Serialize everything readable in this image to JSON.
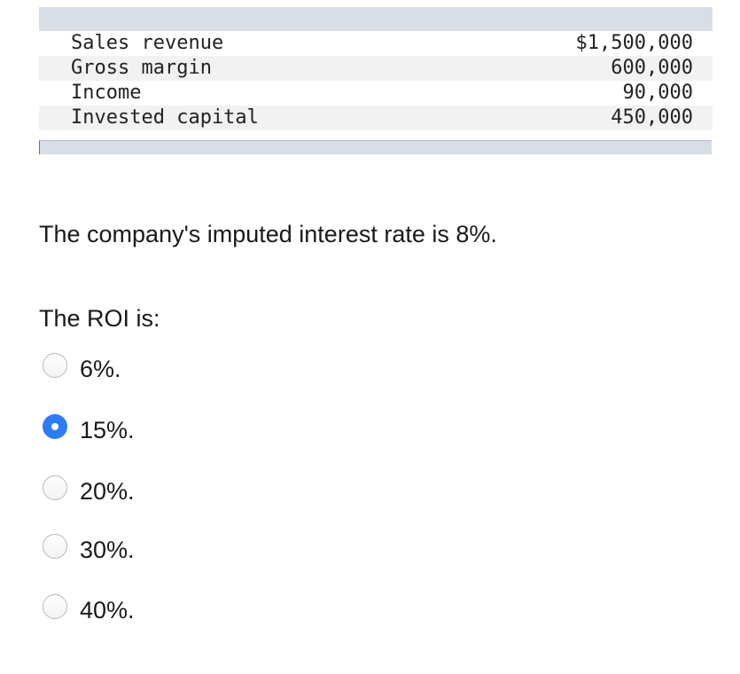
{
  "table": {
    "rows": [
      {
        "label": "Sales revenue",
        "value": "$1,500,000"
      },
      {
        "label": "Gross margin",
        "value": "600,000"
      },
      {
        "label": "Income",
        "value": "90,000"
      },
      {
        "label": "Invested capital",
        "value": "450,000"
      }
    ]
  },
  "statement": "The company's imputed interest rate is 8%.",
  "question": "The ROI is:",
  "options": [
    {
      "label": "6%.",
      "selected": false
    },
    {
      "label": "15%.",
      "selected": true
    },
    {
      "label": "20%.",
      "selected": false
    },
    {
      "label": "30%.",
      "selected": false
    },
    {
      "label": "40%.",
      "selected": false
    }
  ],
  "colors": {
    "table_bar": "#d8dde6",
    "row_shade": "#f2f2f2",
    "radio_selected": "#2b7cf6"
  }
}
